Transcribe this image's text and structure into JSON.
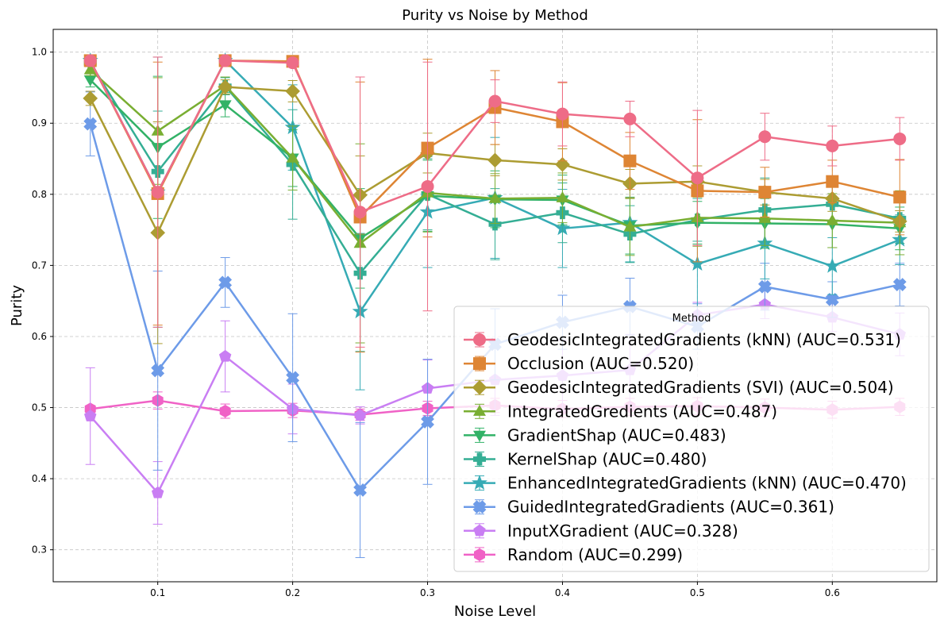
{
  "chart_data": {
    "type": "line",
    "title": "Purity vs Noise by Method",
    "xlabel": "Noise Level",
    "ylabel": "Purity",
    "xlim": [
      0.0225,
      0.6775
    ],
    "ylim": [
      0.255,
      1.032
    ],
    "xticks": [
      0.1,
      0.2,
      0.3,
      0.4,
      0.5,
      0.6
    ],
    "xtick_labels": [
      "0.1",
      "0.2",
      "0.3",
      "0.4",
      "0.5",
      "0.6"
    ],
    "yticks": [
      0.3,
      0.4,
      0.5,
      0.6,
      0.7,
      0.8,
      0.9,
      1.0
    ],
    "ytick_labels": [
      "0.3",
      "0.4",
      "0.5",
      "0.6",
      "0.7",
      "0.8",
      "0.9",
      "1.0"
    ],
    "grid": true,
    "legend_title": "Method",
    "legend_position": "lower-right",
    "x": [
      0.05,
      0.1,
      0.15,
      0.2,
      0.25,
      0.3,
      0.35,
      0.4,
      0.45,
      0.5,
      0.55,
      0.6,
      0.65
    ],
    "series": [
      {
        "name": "GeodesicIntegratedGradients (kNN) (AUC=0.531)",
        "color": "#ee6c87",
        "marker": "circle",
        "values": [
          0.988,
          0.803,
          0.988,
          0.985,
          0.775,
          0.811,
          0.931,
          0.913,
          0.906,
          0.823,
          0.881,
          0.868,
          0.878
        ],
        "errors": [
          0.004,
          0.19,
          0.004,
          0.006,
          0.19,
          0.175,
          0.03,
          0.045,
          0.025,
          0.095,
          0.033,
          0.028,
          0.03
        ]
      },
      {
        "name": "Occlusion (AUC=0.520)",
        "color": "#de8534",
        "marker": "square",
        "values": [
          0.988,
          0.801,
          0.988,
          0.987,
          0.768,
          0.865,
          0.922,
          0.902,
          0.847,
          0.805,
          0.803,
          0.818,
          0.796
        ],
        "errors": [
          0.004,
          0.185,
          0.004,
          0.005,
          0.19,
          0.125,
          0.052,
          0.055,
          0.04,
          0.1,
          0.035,
          0.03,
          0.053
        ]
      },
      {
        "name": "GeodesicIntegratedGradients (SVI) (AUC=0.504)",
        "color": "#ac9c32",
        "marker": "diamond",
        "values": [
          0.935,
          0.746,
          0.951,
          0.945,
          0.799,
          0.858,
          0.848,
          0.842,
          0.815,
          0.818,
          0.803,
          0.794,
          0.762
        ],
        "errors": [
          0.01,
          0.156,
          0.01,
          0.015,
          0.055,
          0.028,
          0.022,
          0.022,
          0.02,
          0.022,
          0.018,
          0.018,
          0.015
        ]
      },
      {
        "name": "IntegratedGredients (AUC=0.487)",
        "color": "#79ae32",
        "marker": "triangle-up",
        "values": [
          0.975,
          0.889,
          0.953,
          0.851,
          0.731,
          0.802,
          0.794,
          0.795,
          0.754,
          0.767,
          0.766,
          0.763,
          0.76
        ],
        "errors": [
          0.008,
          0.075,
          0.012,
          0.045,
          0.14,
          0.055,
          0.035,
          0.035,
          0.04,
          0.04,
          0.038,
          0.038,
          0.045
        ]
      },
      {
        "name": "GradientShap (AUC=0.483)",
        "color": "#32b267",
        "marker": "triangle-down",
        "values": [
          0.961,
          0.866,
          0.926,
          0.851,
          0.738,
          0.798,
          0.793,
          0.792,
          0.756,
          0.76,
          0.759,
          0.758,
          0.752
        ],
        "errors": [
          0.01,
          0.1,
          0.017,
          0.04,
          0.07,
          0.05,
          0.04,
          0.035,
          0.04,
          0.03,
          0.035,
          0.033,
          0.03
        ]
      },
      {
        "name": "KernelShap (AUC=0.480)",
        "color": "#34ae94",
        "marker": "plus",
        "values": [
          0.985,
          0.832,
          0.952,
          0.842,
          0.689,
          0.8,
          0.758,
          0.774,
          0.744,
          0.764,
          0.778,
          0.786,
          0.766
        ],
        "errors": [
          0.005,
          0.085,
          0.012,
          0.077,
          0.11,
          0.05,
          0.05,
          0.042,
          0.04,
          0.03,
          0.045,
          0.025,
          0.035
        ]
      },
      {
        "name": "EnhancedIntegratedGradients (kNN) (AUC=0.470)",
        "color": "#36abb5",
        "marker": "star",
        "values": [
          0.988,
          0.803,
          0.988,
          0.894,
          0.635,
          0.775,
          0.795,
          0.752,
          0.76,
          0.702,
          0.731,
          0.699,
          0.736
        ],
        "errors": [
          0.004,
          0.19,
          0.004,
          0.06,
          0.11,
          0.078,
          0.085,
          0.055,
          0.055,
          0.06,
          0.05,
          0.04,
          0.035
        ]
      },
      {
        "name": "GuidedIntegratedGradients (AUC=0.361)",
        "color": "#6d9be8",
        "marker": "x",
        "values": [
          0.899,
          0.552,
          0.676,
          0.542,
          0.384,
          0.48,
          0.589,
          0.62,
          0.642,
          0.614,
          0.67,
          0.652,
          0.673
        ],
        "errors": [
          0.045,
          0.14,
          0.035,
          0.09,
          0.095,
          0.088,
          0.05,
          0.038,
          0.04,
          0.032,
          0.033,
          0.025,
          0.03
        ]
      },
      {
        "name": "InputXGradient (AUC=0.328)",
        "color": "#c97ef3",
        "marker": "pentagon",
        "values": [
          0.488,
          0.38,
          0.572,
          0.498,
          0.489,
          0.527,
          0.539,
          0.545,
          0.553,
          0.63,
          0.645,
          0.627,
          0.603
        ],
        "errors": [
          0.068,
          0.044,
          0.05,
          0.035,
          0.012,
          0.04,
          0.05,
          0.05,
          0.05,
          0.018,
          0.02,
          0.02,
          0.03
        ]
      },
      {
        "name": "Random (AUC=0.299)",
        "color": "#f062c6",
        "marker": "hexagon",
        "values": [
          0.498,
          0.51,
          0.495,
          0.496,
          0.49,
          0.499,
          0.503,
          0.498,
          0.501,
          0.502,
          0.5,
          0.497,
          0.501
        ],
        "errors": [
          0.005,
          0.012,
          0.01,
          0.01,
          0.008,
          0.01,
          0.01,
          0.012,
          0.012,
          0.012,
          0.012,
          0.012,
          0.012
        ]
      }
    ]
  }
}
